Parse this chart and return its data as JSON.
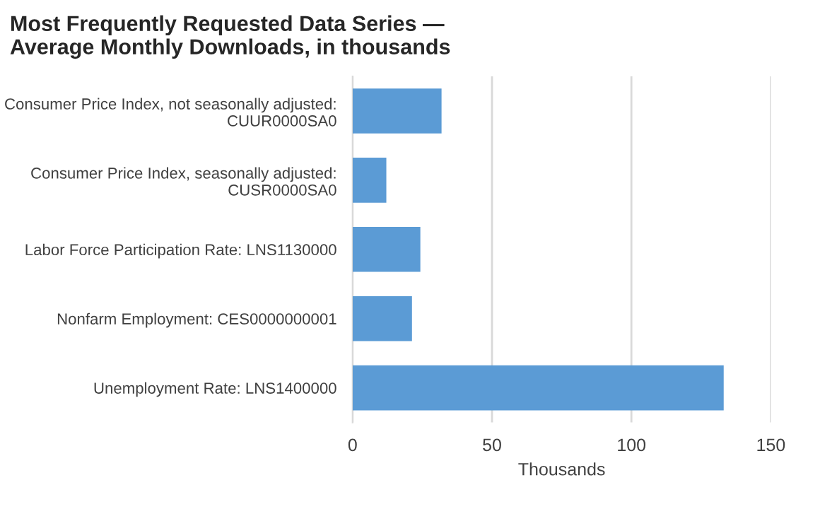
{
  "chart_data": {
    "type": "bar",
    "orientation": "horizontal",
    "title": "Most Frequently Requested Data Series —\nAverage Monthly Downloads, in thousands",
    "xlabel": "Thousands",
    "categories": [
      "Consumer Price Index, not seasonally adjusted:\nCUUR0000SA0",
      "Consumer Price Index, seasonally adjusted:\nCUSR0000SA0",
      "Labor Force Participation Rate: LNS1130000",
      "Nonfarm Employment: CES0000000001",
      "Unemployment Rate: LNS1400000"
    ],
    "values": [
      31.9,
      12.1,
      24.3,
      21.3,
      133.1
    ],
    "color": "#5b9bd5",
    "xlim": [
      0,
      150
    ],
    "xticks": [
      0,
      50,
      100,
      150
    ],
    "grid": "x",
    "legend": false
  }
}
